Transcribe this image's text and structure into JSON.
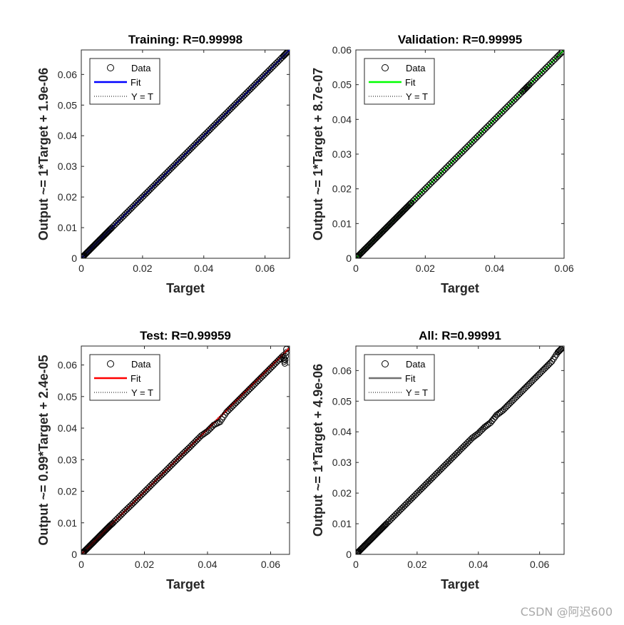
{
  "figure": {
    "watermark": "CSDN @阿迟600"
  },
  "chart_data": [
    {
      "type": "scatter",
      "title": "Training: R=0.99998",
      "xlabel": "Target",
      "ylabel": "Output ~= 1*Target + 1.9e-06",
      "xlim": [
        0,
        0.068
      ],
      "ylim": [
        0,
        0.068
      ],
      "xticks": [
        0,
        0.02,
        0.04,
        0.06
      ],
      "yticks": [
        0,
        0.01,
        0.02,
        0.03,
        0.04,
        0.05,
        0.06
      ],
      "xtick_labels": [
        "0",
        "0.02",
        "0.04",
        "0.06"
      ],
      "ytick_labels": [
        "0",
        "0.01",
        "0.02",
        "0.03",
        "0.04",
        "0.05",
        "0.06"
      ],
      "fit": {
        "slope": 1,
        "intercept": 1.9e-06,
        "color": "#0000ff"
      },
      "legend": {
        "position": "top-left",
        "entries": [
          "Data",
          "Fit",
          "Y = T"
        ]
      },
      "series": [
        {
          "name": "Data",
          "x": [
            0.0003,
            0.001,
            0.002,
            0.003,
            0.004,
            0.005,
            0.006,
            0.007,
            0.008,
            0.009,
            0.01,
            0.012,
            0.014,
            0.016,
            0.018,
            0.02,
            0.022,
            0.024,
            0.026,
            0.028,
            0.03,
            0.032,
            0.034,
            0.036,
            0.038,
            0.04,
            0.042,
            0.044,
            0.046,
            0.048,
            0.05,
            0.052,
            0.054,
            0.056,
            0.058,
            0.06,
            0.062,
            0.064,
            0.066,
            0.067
          ],
          "y": [
            0.0003,
            0.001,
            0.002,
            0.003,
            0.004,
            0.005,
            0.006,
            0.007,
            0.008,
            0.009,
            0.01,
            0.012,
            0.014,
            0.016,
            0.018,
            0.02,
            0.022,
            0.024,
            0.026,
            0.028,
            0.03,
            0.032,
            0.034,
            0.036,
            0.038,
            0.04,
            0.042,
            0.044,
            0.046,
            0.048,
            0.05,
            0.052,
            0.054,
            0.056,
            0.058,
            0.06,
            0.062,
            0.064,
            0.066,
            0.067
          ]
        }
      ]
    },
    {
      "type": "scatter",
      "title": "Validation: R=0.99995",
      "xlabel": "Target",
      "ylabel": "Output ~= 1*Target + 8.7e-07",
      "xlim": [
        0,
        0.06
      ],
      "ylim": [
        0,
        0.06
      ],
      "xticks": [
        0,
        0.02,
        0.04,
        0.06
      ],
      "yticks": [
        0,
        0.01,
        0.02,
        0.03,
        0.04,
        0.05,
        0.06
      ],
      "xtick_labels": [
        "0",
        "0.02",
        "0.04",
        "0.06"
      ],
      "ytick_labels": [
        "0",
        "0.01",
        "0.02",
        "0.03",
        "0.04",
        "0.05",
        "0.06"
      ],
      "fit": {
        "slope": 1,
        "intercept": 8.7e-07,
        "color": "#00ff00"
      },
      "legend": {
        "position": "top-left",
        "entries": [
          "Data",
          "Fit",
          "Y = T"
        ]
      },
      "series": [
        {
          "name": "Data",
          "x": [
            0.0003,
            0.001,
            0.002,
            0.003,
            0.004,
            0.005,
            0.006,
            0.007,
            0.008,
            0.009,
            0.01,
            0.011,
            0.012,
            0.013,
            0.014,
            0.015,
            0.016,
            0.018,
            0.02,
            0.022,
            0.024,
            0.026,
            0.028,
            0.03,
            0.032,
            0.034,
            0.036,
            0.038,
            0.04,
            0.042,
            0.044,
            0.046,
            0.048,
            0.049,
            0.05,
            0.052,
            0.054,
            0.056,
            0.058,
            0.0595
          ],
          "y": [
            0.0003,
            0.001,
            0.002,
            0.003,
            0.004,
            0.005,
            0.006,
            0.007,
            0.008,
            0.009,
            0.01,
            0.011,
            0.012,
            0.013,
            0.014,
            0.015,
            0.016,
            0.018,
            0.02,
            0.022,
            0.024,
            0.026,
            0.028,
            0.03,
            0.032,
            0.034,
            0.036,
            0.038,
            0.04,
            0.042,
            0.044,
            0.046,
            0.048,
            0.049,
            0.05,
            0.052,
            0.054,
            0.056,
            0.058,
            0.0595
          ]
        }
      ]
    },
    {
      "type": "scatter",
      "title": "Test: R=0.99959",
      "xlabel": "Target",
      "ylabel": "Output ~= 0.99*Target + 2.4e-05",
      "xlim": [
        0,
        0.066
      ],
      "ylim": [
        0,
        0.066
      ],
      "xticks": [
        0,
        0.02,
        0.04,
        0.06
      ],
      "yticks": [
        0,
        0.01,
        0.02,
        0.03,
        0.04,
        0.05,
        0.06
      ],
      "xtick_labels": [
        "0",
        "0.02",
        "0.04",
        "0.06"
      ],
      "ytick_labels": [
        "0",
        "0.01",
        "0.02",
        "0.03",
        "0.04",
        "0.05",
        "0.06"
      ],
      "fit": {
        "slope": 0.99,
        "intercept": 2.4e-05,
        "color": "#ff0000"
      },
      "legend": {
        "position": "top-left",
        "entries": [
          "Data",
          "Fit",
          "Y = T"
        ]
      },
      "series": [
        {
          "name": "Data",
          "x": [
            0.0003,
            0.001,
            0.002,
            0.003,
            0.004,
            0.005,
            0.006,
            0.007,
            0.008,
            0.009,
            0.01,
            0.012,
            0.014,
            0.016,
            0.018,
            0.02,
            0.022,
            0.024,
            0.026,
            0.028,
            0.03,
            0.032,
            0.034,
            0.036,
            0.038,
            0.04,
            0.042,
            0.044,
            0.046,
            0.048,
            0.05,
            0.052,
            0.054,
            0.056,
            0.058,
            0.06,
            0.062,
            0.064,
            0.0645,
            0.065
          ],
          "y": [
            0.0003,
            0.001,
            0.002,
            0.003,
            0.004,
            0.005,
            0.006,
            0.007,
            0.008,
            0.009,
            0.0099,
            0.0119,
            0.0139,
            0.0158,
            0.0178,
            0.0198,
            0.0218,
            0.0238,
            0.0257,
            0.0277,
            0.0297,
            0.0317,
            0.0336,
            0.0356,
            0.0376,
            0.039,
            0.041,
            0.042,
            0.045,
            0.047,
            0.049,
            0.051,
            0.053,
            0.055,
            0.057,
            0.059,
            0.061,
            0.063,
            0.0605,
            0.065
          ]
        }
      ]
    },
    {
      "type": "scatter",
      "title": "All: R=0.99991",
      "xlabel": "Target",
      "ylabel": "Output ~= 1*Target + 4.9e-06",
      "xlim": [
        0,
        0.068
      ],
      "ylim": [
        0,
        0.068
      ],
      "xticks": [
        0,
        0.02,
        0.04,
        0.06
      ],
      "yticks": [
        0,
        0.01,
        0.02,
        0.03,
        0.04,
        0.05,
        0.06
      ],
      "xtick_labels": [
        "0",
        "0.02",
        "0.04",
        "0.06"
      ],
      "ytick_labels": [
        "0",
        "0.01",
        "0.02",
        "0.03",
        "0.04",
        "0.05",
        "0.06"
      ],
      "fit": {
        "slope": 1,
        "intercept": 4.9e-06,
        "color": "#707070"
      },
      "legend": {
        "position": "top-left",
        "entries": [
          "Data",
          "Fit",
          "Y = T"
        ]
      },
      "series": [
        {
          "name": "Data",
          "x": [
            0.0003,
            0.001,
            0.002,
            0.003,
            0.004,
            0.005,
            0.006,
            0.007,
            0.008,
            0.009,
            0.01,
            0.012,
            0.014,
            0.016,
            0.018,
            0.02,
            0.022,
            0.024,
            0.026,
            0.028,
            0.03,
            0.032,
            0.034,
            0.036,
            0.038,
            0.04,
            0.042,
            0.044,
            0.046,
            0.048,
            0.05,
            0.052,
            0.054,
            0.056,
            0.058,
            0.06,
            0.062,
            0.064,
            0.066,
            0.067
          ],
          "y": [
            0.0003,
            0.001,
            0.002,
            0.003,
            0.004,
            0.005,
            0.006,
            0.007,
            0.008,
            0.009,
            0.01,
            0.012,
            0.014,
            0.016,
            0.018,
            0.02,
            0.022,
            0.024,
            0.026,
            0.028,
            0.03,
            0.032,
            0.034,
            0.036,
            0.038,
            0.0395,
            0.0415,
            0.043,
            0.0455,
            0.047,
            0.049,
            0.051,
            0.053,
            0.055,
            0.057,
            0.059,
            0.061,
            0.063,
            0.066,
            0.067
          ]
        }
      ]
    }
  ]
}
